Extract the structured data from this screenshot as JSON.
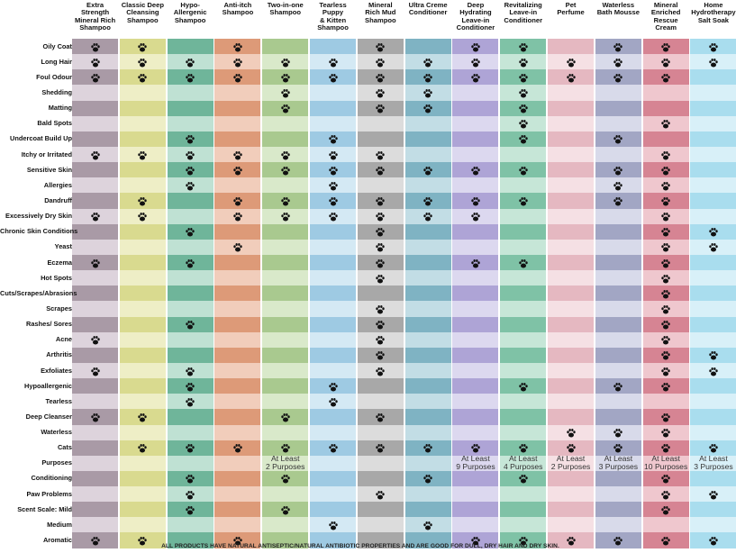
{
  "products": [
    {
      "name": "Extra\nStrength\nMineral Rich\nShampoo",
      "dark": "#a99aa6",
      "light": "#ddd3dc"
    },
    {
      "name": "Classic Deep\nCleansing\nShampoo",
      "dark": "#d9da8f",
      "light": "#eeeec6"
    },
    {
      "name": "Hypo-\nAllergenic\nShampoo",
      "dark": "#6fb59a",
      "light": "#bfe1d3"
    },
    {
      "name": "Anti-itch\nShampoo",
      "dark": "#dd9a78",
      "light": "#f1cdbb"
    },
    {
      "name": "Two-in-one\nShampoo",
      "dark": "#a9c98f",
      "light": "#d9e9ca"
    },
    {
      "name": "Tearless\nPuppy\n& Kitten\nShampoo",
      "dark": "#9ecae3",
      "light": "#d4e9f4"
    },
    {
      "name": "Mineral\nRich Mud\nShampoo",
      "dark": "#a8a8a8",
      "light": "#dcdcdc"
    },
    {
      "name": "Ultra Creme\nConditioner",
      "dark": "#7fb3c3",
      "light": "#c2dde5"
    },
    {
      "name": "Deep\nHydrating\nLeave-in\nConditioner",
      "dark": "#aea4d6",
      "light": "#dcd8ef"
    },
    {
      "name": "Revitalizing\nLeave-in\nConditioner",
      "dark": "#7fc2a6",
      "light": "#c6e6d7"
    },
    {
      "name": "Pet\nPerfume",
      "dark": "#e5b8c1",
      "light": "#f5e0e4"
    },
    {
      "name": "Waterless\nBath Mousse",
      "dark": "#a2a6c4",
      "light": "#d8daea"
    },
    {
      "name": "Mineral\nEnriched\nRescue Cream",
      "dark": "#d68493",
      "light": "#efc7ce"
    },
    {
      "name": "Home\nHydrotherapy\nSalt Soak",
      "dark": "#a9ddee",
      "light": "#d8f0f8"
    }
  ],
  "rows": [
    {
      "label": "Oily Coat",
      "marks": [
        1,
        1,
        0,
        1,
        0,
        0,
        1,
        0,
        1,
        1,
        0,
        1,
        1,
        1
      ]
    },
    {
      "label": "Long Hair",
      "marks": [
        1,
        1,
        1,
        1,
        1,
        1,
        1,
        1,
        1,
        1,
        1,
        1,
        1,
        1
      ]
    },
    {
      "label": "Foul Odour",
      "marks": [
        1,
        1,
        1,
        1,
        1,
        1,
        1,
        1,
        1,
        1,
        1,
        1,
        1,
        0
      ]
    },
    {
      "label": "Shedding",
      "marks": [
        0,
        0,
        0,
        0,
        1,
        0,
        1,
        1,
        0,
        1,
        0,
        0,
        0,
        0
      ]
    },
    {
      "label": "Matting",
      "marks": [
        0,
        0,
        0,
        0,
        1,
        0,
        1,
        1,
        0,
        1,
        0,
        0,
        0,
        0
      ]
    },
    {
      "label": "Bald Spots",
      "marks": [
        0,
        0,
        0,
        0,
        0,
        0,
        0,
        0,
        0,
        1,
        0,
        0,
        1,
        0
      ]
    },
    {
      "label": "Undercoat Build Up",
      "marks": [
        0,
        0,
        1,
        0,
        0,
        1,
        0,
        0,
        0,
        1,
        0,
        1,
        0,
        0
      ]
    },
    {
      "label": "Itchy or Irritated",
      "marks": [
        1,
        1,
        1,
        1,
        1,
        1,
        1,
        0,
        0,
        0,
        0,
        0,
        1,
        0
      ]
    },
    {
      "label": "Sensitive Skin",
      "marks": [
        0,
        0,
        1,
        1,
        1,
        1,
        1,
        1,
        1,
        1,
        0,
        1,
        1,
        0
      ]
    },
    {
      "label": "Allergies",
      "marks": [
        0,
        0,
        1,
        0,
        0,
        1,
        0,
        0,
        0,
        0,
        0,
        1,
        1,
        0
      ]
    },
    {
      "label": "Dandruff",
      "marks": [
        0,
        1,
        0,
        1,
        1,
        1,
        1,
        1,
        1,
        1,
        0,
        1,
        1,
        0
      ]
    },
    {
      "label": "Excessively Dry Skin",
      "marks": [
        1,
        1,
        0,
        1,
        1,
        1,
        1,
        1,
        1,
        0,
        0,
        0,
        1,
        0
      ]
    },
    {
      "label": "Chronic Skin Conditions",
      "marks": [
        0,
        0,
        1,
        0,
        0,
        0,
        1,
        0,
        0,
        0,
        0,
        0,
        1,
        1
      ]
    },
    {
      "label": "Yeast",
      "marks": [
        0,
        0,
        0,
        1,
        0,
        0,
        1,
        0,
        0,
        0,
        0,
        0,
        1,
        1
      ]
    },
    {
      "label": "Eczema",
      "marks": [
        1,
        0,
        1,
        0,
        0,
        0,
        1,
        0,
        1,
        1,
        0,
        0,
        1,
        0
      ]
    },
    {
      "label": "Hot Spots",
      "marks": [
        0,
        0,
        0,
        0,
        0,
        0,
        1,
        0,
        0,
        0,
        0,
        0,
        1,
        0
      ]
    },
    {
      "label": "Cuts/Scrapes/Abrasions",
      "marks": [
        0,
        0,
        0,
        0,
        0,
        0,
        0,
        0,
        0,
        0,
        0,
        0,
        1,
        0
      ]
    },
    {
      "label": "Scrapes",
      "marks": [
        0,
        0,
        0,
        0,
        0,
        0,
        1,
        0,
        0,
        0,
        0,
        0,
        1,
        0
      ]
    },
    {
      "label": "Rashes/ Sores",
      "marks": [
        0,
        0,
        1,
        0,
        0,
        0,
        1,
        0,
        0,
        0,
        0,
        0,
        1,
        0
      ]
    },
    {
      "label": "Acne",
      "marks": [
        1,
        0,
        0,
        0,
        0,
        0,
        1,
        0,
        0,
        0,
        0,
        0,
        1,
        0
      ]
    },
    {
      "label": "Arthritis",
      "marks": [
        0,
        0,
        0,
        0,
        0,
        0,
        1,
        0,
        0,
        0,
        0,
        0,
        1,
        1
      ]
    },
    {
      "label": "Exfoliates",
      "marks": [
        1,
        0,
        1,
        0,
        0,
        0,
        1,
        0,
        0,
        0,
        0,
        0,
        1,
        1
      ]
    },
    {
      "label": "Hypoallergenic",
      "marks": [
        0,
        0,
        1,
        0,
        0,
        1,
        0,
        0,
        0,
        1,
        0,
        1,
        1,
        0
      ]
    },
    {
      "label": "Tearless",
      "marks": [
        0,
        0,
        1,
        0,
        0,
        1,
        0,
        0,
        0,
        0,
        0,
        0,
        0,
        0
      ]
    },
    {
      "label": "Deep Cleanser",
      "marks": [
        1,
        1,
        0,
        0,
        1,
        0,
        1,
        0,
        0,
        0,
        0,
        0,
        1,
        0
      ]
    },
    {
      "label": "Waterless",
      "marks": [
        0,
        0,
        0,
        0,
        0,
        0,
        0,
        0,
        0,
        0,
        1,
        1,
        1,
        0
      ]
    },
    {
      "label": "Cats",
      "marks": [
        0,
        1,
        1,
        1,
        1,
        1,
        1,
        1,
        1,
        1,
        1,
        1,
        1,
        1
      ]
    },
    {
      "label": "Purposes",
      "marks": [
        0,
        0,
        0,
        0,
        0,
        0,
        0,
        0,
        0,
        0,
        0,
        0,
        0,
        0
      ]
    },
    {
      "label": "Conditioning",
      "marks": [
        0,
        0,
        1,
        0,
        1,
        0,
        0,
        1,
        0,
        1,
        0,
        0,
        1,
        0
      ]
    },
    {
      "label": "Paw Problems",
      "marks": [
        0,
        0,
        1,
        0,
        0,
        0,
        1,
        0,
        0,
        0,
        0,
        0,
        1,
        1
      ]
    },
    {
      "label": "Scent Scale:  Mild",
      "marks": [
        0,
        0,
        1,
        0,
        1,
        0,
        0,
        0,
        0,
        0,
        0,
        0,
        1,
        0
      ]
    },
    {
      "label": "Medium",
      "marks": [
        0,
        0,
        0,
        0,
        0,
        1,
        0,
        1,
        0,
        0,
        0,
        0,
        0,
        0
      ]
    },
    {
      "label": "Aromatic",
      "marks": [
        1,
        1,
        0,
        1,
        0,
        0,
        0,
        0,
        1,
        1,
        1,
        1,
        1,
        1
      ]
    }
  ],
  "purposes": [
    {
      "col": 4,
      "text": "At Least\n2 Purposes"
    },
    {
      "col": 8,
      "text": "At Least\n9 Purposes"
    },
    {
      "col": 9,
      "text": "At Least\n4 Purposes"
    },
    {
      "col": 10,
      "text": "At Least\n2 Purposes"
    },
    {
      "col": 11,
      "text": "At Least\n3 Purposes"
    },
    {
      "col": 12,
      "text": "At Least\n10 Purposes"
    },
    {
      "col": 13,
      "text": "At Least\n3 Purposes"
    }
  ],
  "footer": "ALL PRODUCTS HAVE NATURAL ANTISEPTIC/NATURAL ANTIBIOTIC PROPERTIES AND ARE GOOD FOR DULL, DRY HAIR AND DRY SKIN.",
  "icons": {
    "mark": "paw-print-icon"
  }
}
